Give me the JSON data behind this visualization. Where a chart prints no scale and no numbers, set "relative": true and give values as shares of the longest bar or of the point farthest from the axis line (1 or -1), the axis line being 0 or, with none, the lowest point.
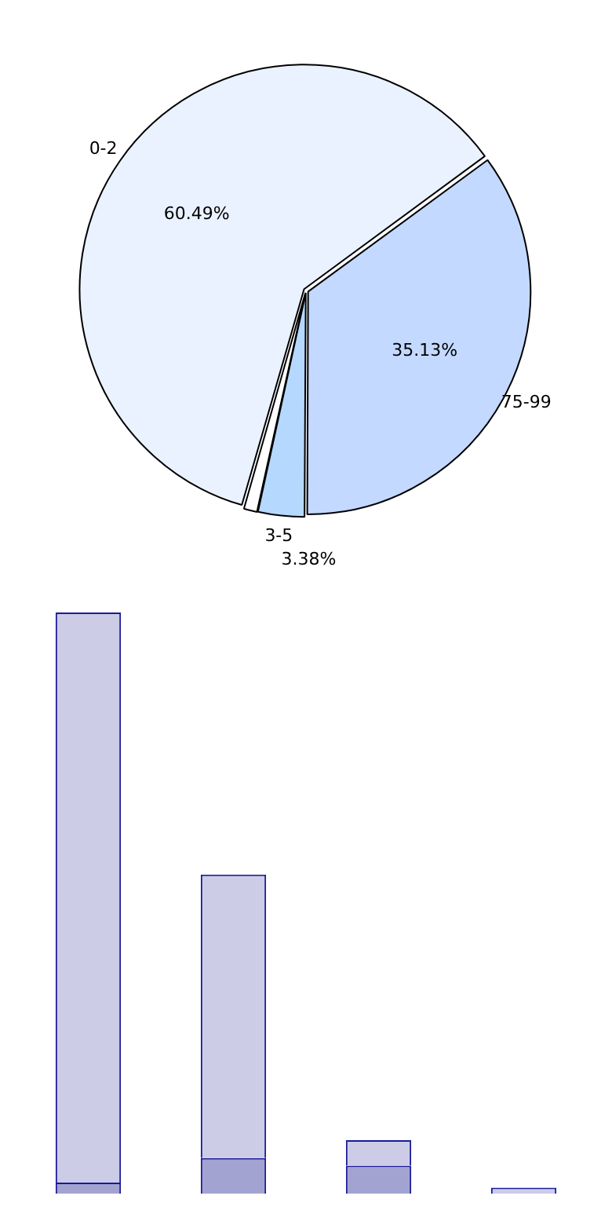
{
  "chart_data": [
    {
      "type": "pie",
      "categories": [
        "0-2",
        "75-99",
        "3-5",
        null
      ],
      "values": [
        60.49,
        35.13,
        3.38,
        1.0
      ],
      "colors": [
        "#eaf2ff",
        "#c4d9ff",
        "#b5d8ff",
        "#ffffff"
      ],
      "value_labels": [
        "60.49%",
        "35.13%",
        "3.38%",
        null
      ],
      "legend": false
    },
    {
      "type": "bar",
      "relative": true,
      "stacked": true,
      "categories": [
        null,
        null,
        null,
        null
      ],
      "series": [
        {
          "color": "#a3a3d1",
          "values": [
            0.019,
            0.061,
            0.048,
            0
          ]
        },
        {
          "color": "#cccce6",
          "values": [
            0.981,
            0.488,
            0.044,
            0.01
          ]
        }
      ],
      "legend": false
    }
  ]
}
